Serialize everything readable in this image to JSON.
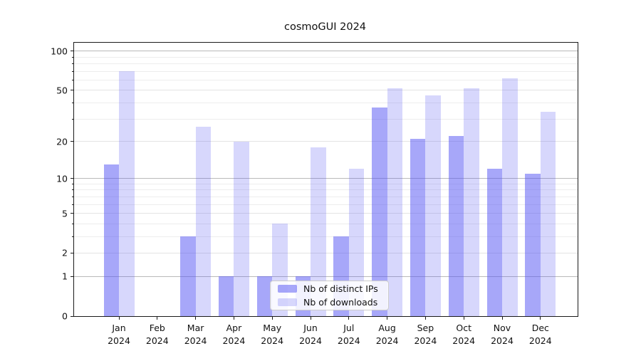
{
  "title": "cosmoGUI 2024",
  "legend": {
    "items": [
      {
        "label": "Nb of distinct IPs",
        "color": "rgba(87,87,243,0.52)"
      },
      {
        "label": "Nb of downloads",
        "color": "rgba(87,87,243,0.24)"
      }
    ]
  },
  "axis": {
    "year_label": "2024",
    "y_tick_values": [
      100,
      50,
      20,
      10,
      5,
      2,
      1,
      0
    ],
    "y_minor_tick_values": [
      3,
      4,
      6,
      7,
      8,
      9,
      30,
      40,
      60,
      70,
      80,
      90
    ],
    "decade_values": [
      1,
      10,
      100
    ]
  },
  "chart_data": {
    "type": "bar",
    "title": "cosmoGUI 2024",
    "categories": [
      "Jan",
      "Feb",
      "Mar",
      "Apr",
      "May",
      "Jun",
      "Jul",
      "Aug",
      "Sep",
      "Oct",
      "Nov",
      "Dec"
    ],
    "x_year": "2024",
    "series": [
      {
        "name": "Nb of distinct IPs",
        "color": "rgba(87,87,243,0.52)",
        "values": [
          13,
          0,
          3,
          1,
          1,
          1,
          3,
          37,
          21,
          22,
          12,
          11
        ]
      },
      {
        "name": "Nb of downloads",
        "color": "rgba(87,87,243,0.24)",
        "values": [
          70,
          0,
          26,
          20,
          4,
          18,
          12,
          52,
          46,
          52,
          62,
          34
        ]
      }
    ],
    "xlabel": "",
    "ylabel": "",
    "yscale": "log(1+y)",
    "ylim": [
      0,
      116
    ],
    "y_ticks": [
      0,
      1,
      2,
      5,
      10,
      20,
      50,
      100
    ],
    "y_minor_ticks": [
      3,
      4,
      6,
      7,
      8,
      9,
      30,
      40,
      60,
      70,
      80,
      90
    ],
    "grid": "horizontal",
    "legend_position": "lower center"
  }
}
